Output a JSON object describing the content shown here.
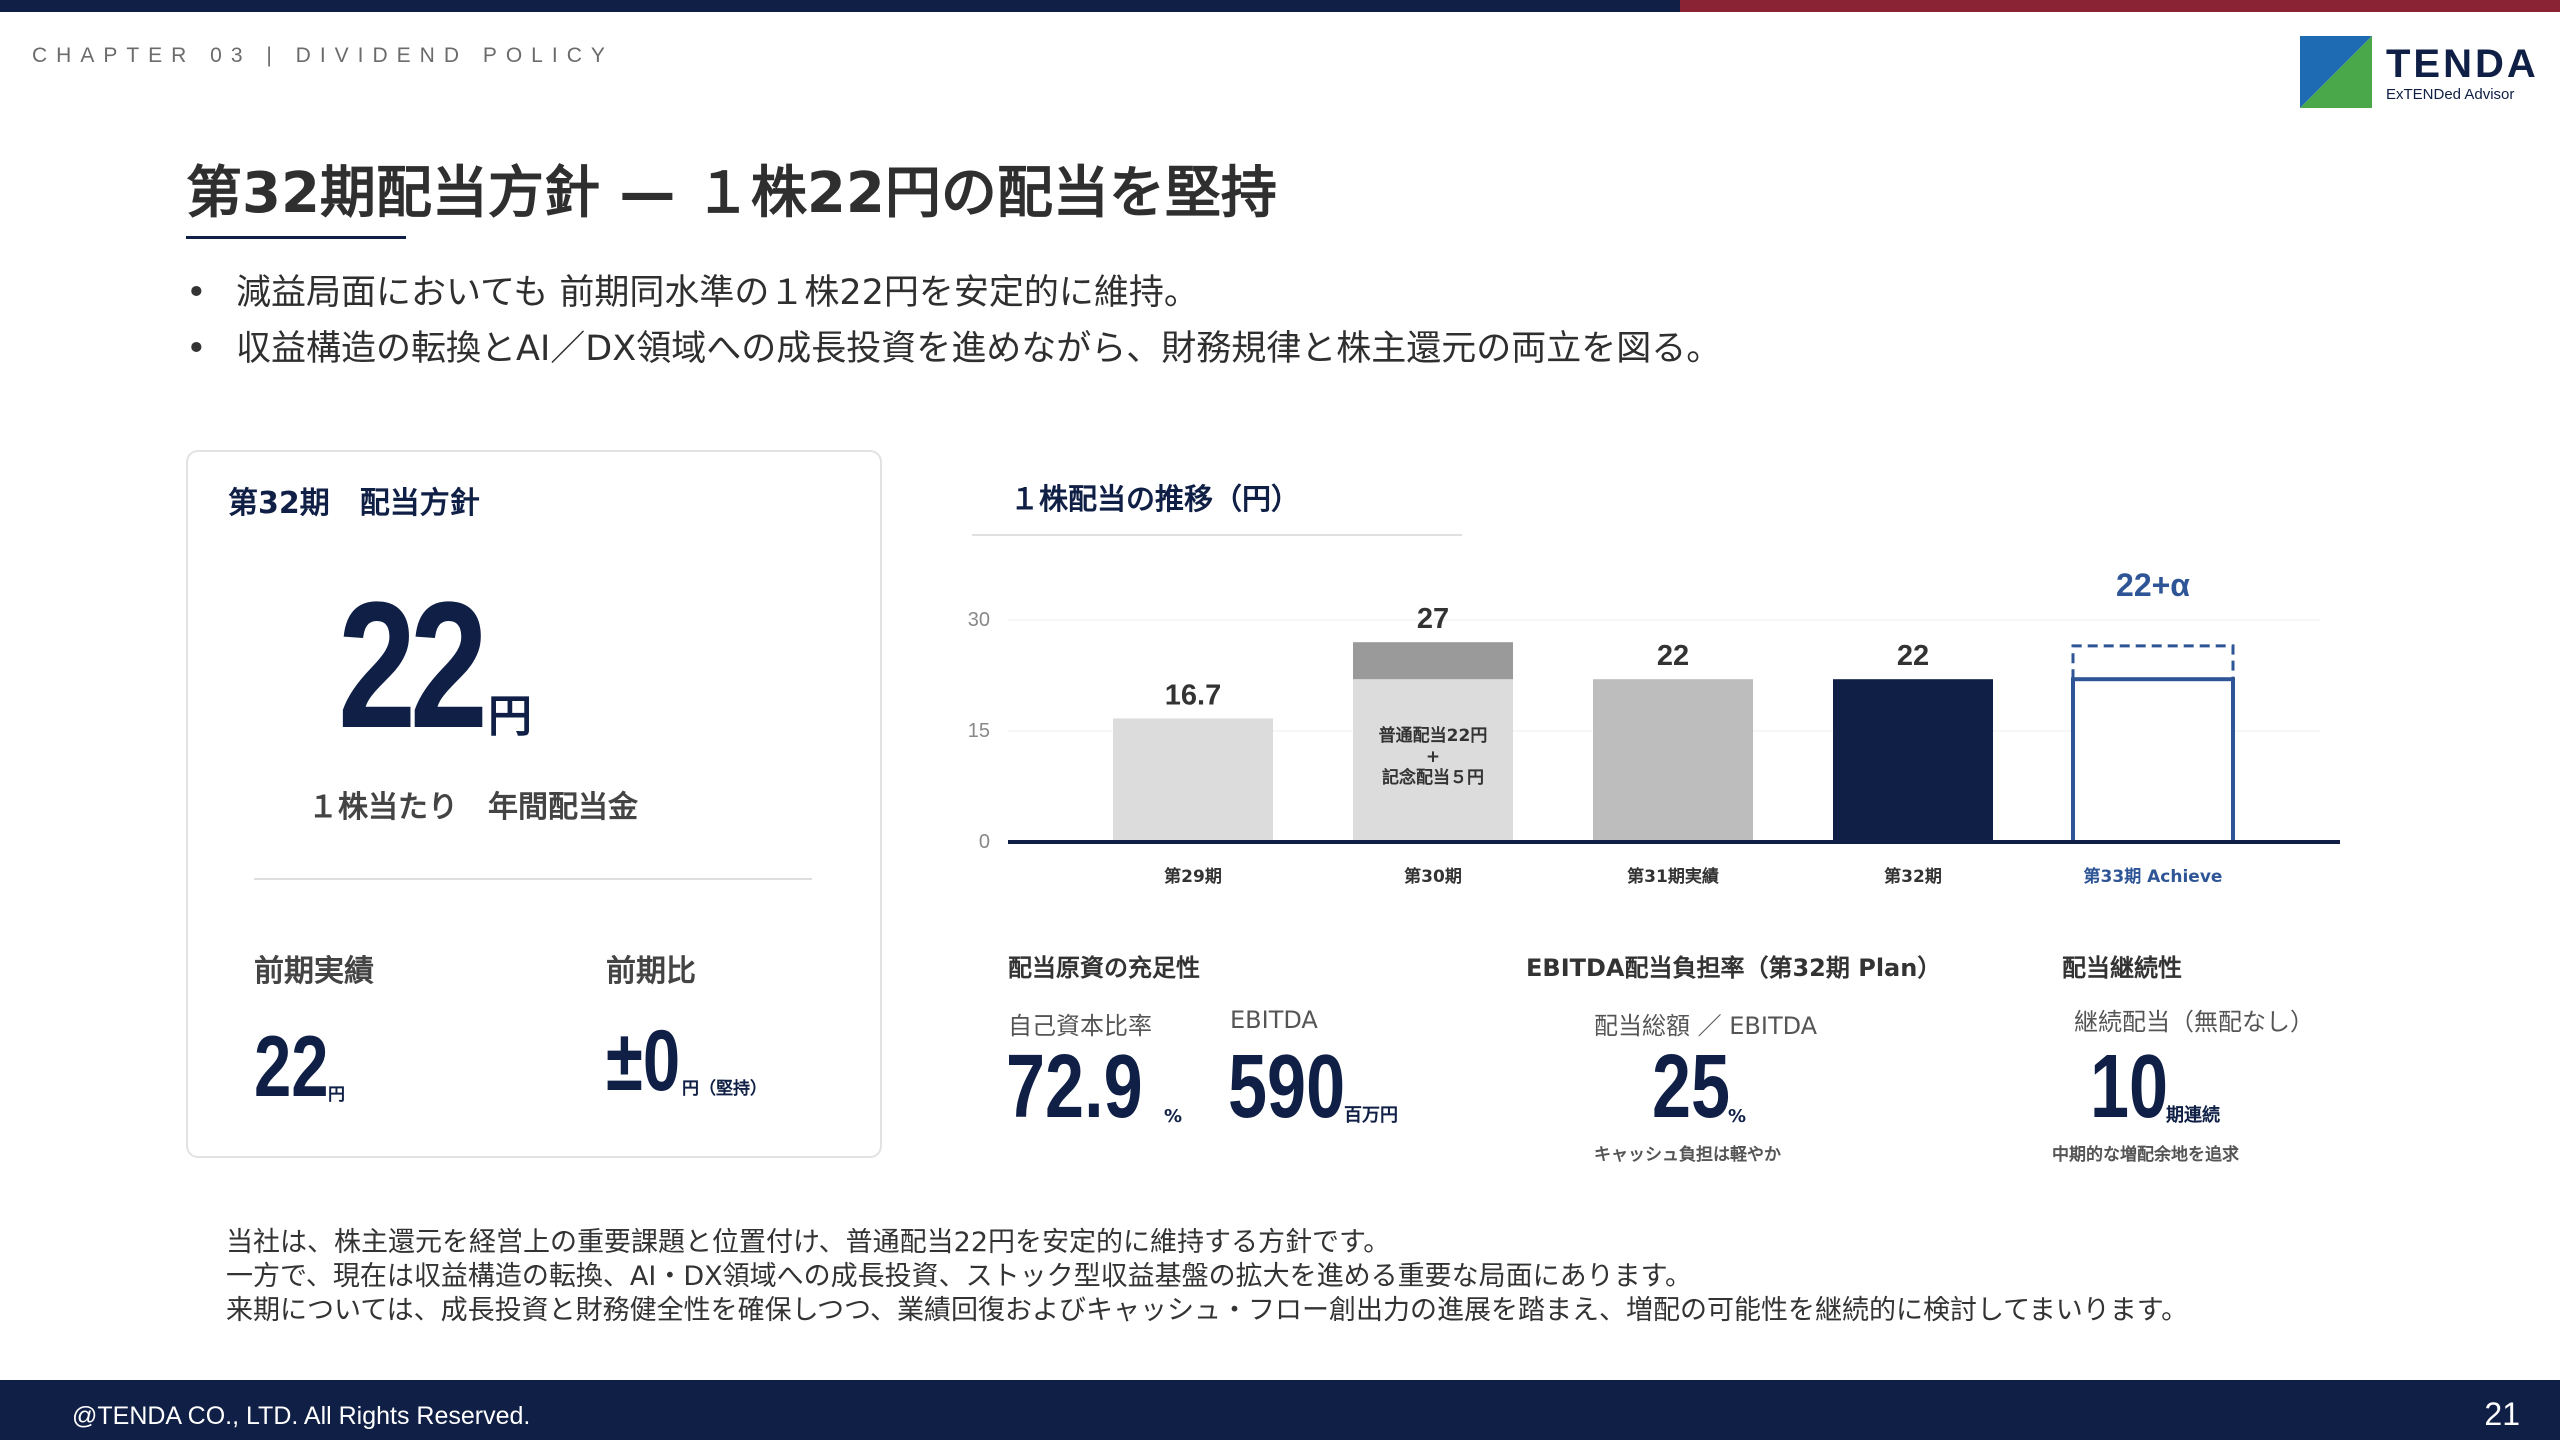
{
  "colors": {
    "navy": "#0f1f45",
    "accent_red": "#8a2434",
    "brand_blue": "#1f6bb3",
    "brand_green": "#4aa84a",
    "achieve_blue": "#2e5596"
  },
  "header": {
    "chapter": "CHAPTER 03 | DIVIDEND POLICY",
    "logo_name": "TENDA",
    "logo_tagline": "ExTENDed Advisor"
  },
  "slide": {
    "title": "第32期配当方針 — １株22円の配当を堅持",
    "bullets": [
      "減益局面においても 前期同水準の１株22円を安定的に維持。",
      "収益構造の転換とAI／DX領域への成長投資を進めながら、財務規律と株主還元の両立を図る。"
    ]
  },
  "policy_card": {
    "title": "第32期　配当方針",
    "amount": "22",
    "amount_unit": "円",
    "caption": "１株当たり　年間配当金",
    "prev_label": "前期実績",
    "prev_value": "22",
    "prev_unit": "円",
    "diff_label": "前期比",
    "diff_value": "±0",
    "diff_unit": "円（堅持）"
  },
  "chart_title": "１株配当の推移（円）",
  "chart_data": {
    "type": "bar",
    "categories": [
      "第29期",
      "第30期",
      "第31期実績",
      "第32期",
      "第33期 Achieve"
    ],
    "values": [
      16.7,
      27,
      22,
      22,
      22
    ],
    "value_labels": [
      "16.7",
      "27",
      "22",
      "22",
      "22+α"
    ],
    "stacked_segment_on": "第30期",
    "stack": {
      "base": 22,
      "top": 5
    },
    "stack_annotation": [
      "普通配当22円",
      "+",
      "記念配当５円"
    ],
    "yticks": [
      "0",
      "15",
      "30"
    ],
    "ylim": [
      0,
      30
    ],
    "title": "",
    "xlabel": "",
    "ylabel": ""
  },
  "metrics": {
    "capacity": {
      "heading": "配当原資の充足性",
      "equity_label": "自己資本比率",
      "equity_value": "72.9",
      "equity_unit": "%",
      "ebitda_label": "EBITDA",
      "ebitda_value": "590",
      "ebitda_unit": "百万円"
    },
    "burden": {
      "heading": "EBITDA配当負担率（第32期 Plan）",
      "label": "配当総額 ／ EBITDA",
      "value": "25",
      "unit": "%",
      "note": "キャッシュ負担は軽やか"
    },
    "continuity": {
      "heading": "配当継続性",
      "label": "継続配当（無配なし）",
      "value": "10",
      "unit": "期連続",
      "note": "中期的な増配余地を追求"
    }
  },
  "footnote": [
    "当社は、株主還元を経営上の重要課題と位置付け、普通配当22円を安定的に維持する方針です。",
    "一方で、現在は収益構造の転換、AI・DX領域への成長投資、ストック型収益基盤の拡大を進める重要な局面にあります。",
    "来期については、成長投資と財務健全性を確保しつつ、業績回復およびキャッシュ・フロー創出力の進展を踏まえ、増配の可能性を継続的に検討してまいります。"
  ],
  "footer": {
    "copyright": "@TENDA CO., LTD. All Rights Reserved.",
    "page": "21"
  }
}
